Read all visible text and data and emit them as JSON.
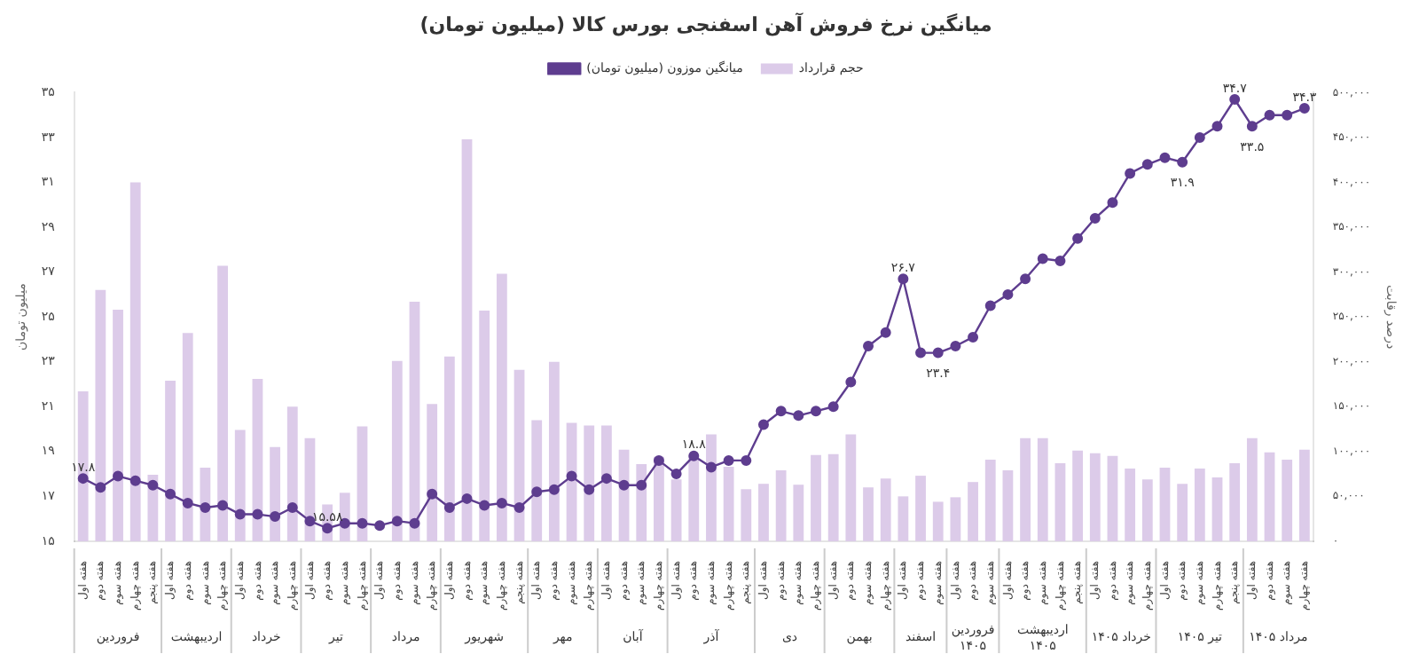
{
  "chart_data": {
    "type": "bar",
    "title": "میانگین نرخ فروش آهن اسفنجی بورس کالا (میلیون تومان)",
    "ylabel": "میلیون تومان",
    "y2label": "درصد رقابت",
    "legend": "top right",
    "grid": false,
    "categories": [
      "هفته اول",
      "هفته دوم",
      "هفته سوم",
      "هفته چهارم",
      "هفته پنجم",
      "هفته اول",
      "هفته دوم",
      "هفته سوم",
      "هفته چهارم",
      "هفته اول",
      "هفته دوم",
      "هفته سوم",
      "هفته چهارم",
      "هفته اول",
      "هفته دوم",
      "هفته سوم",
      "هفته چهارم",
      "هفته اول",
      "هفته دوم",
      "هفته سوم",
      "هفته چهارم",
      "هفته اول",
      "هفته دوم",
      "هفته سوم",
      "هفته چهارم",
      "هفته پنجم",
      "هفته اول",
      "هفته دوم",
      "هفته سوم",
      "هفته چهارم",
      "هفته اول",
      "هفته دوم",
      "هفته سوم",
      "هفته چهارم",
      "هفته اول",
      "هفته دوم",
      "هفته سوم",
      "هفته چهارم",
      "هفته پنجم",
      "هفته اول",
      "هفته دوم",
      "هفته سوم",
      "هفته چهارم",
      "هفته اول",
      "هفته دوم",
      "هفته سوم",
      "هفته چهارم",
      "هفته اول",
      "هفته دوم",
      "هفته سوم",
      "هفته اول",
      "هفته دوم",
      "هفته سوم",
      "هفته اول",
      "هفته دوم",
      "هفته سوم",
      "هفته چهارم",
      "هفته پنجم",
      "هفته اول",
      "هفته دوم",
      "هفته سوم",
      "هفته چهارم",
      "هفته اول",
      "هفته دوم",
      "هفته سوم",
      "هفته چهارم",
      "هفته پنجم",
      "هفته اول",
      "هفته دوم",
      "هفته سوم",
      "هفته چهارم"
    ],
    "annotations": [
      "فروردین",
      "اردیبهشت",
      "خرداد",
      "تیر",
      "مرداد",
      "شهریور",
      "مهر",
      "آبان",
      "آذر",
      "دی",
      "بهمن",
      "اسفند",
      "فروردین ۱۴۰۵",
      "اردیبهشت ۱۴۰۵",
      "خرداد ۱۴۰۵",
      "تیر ۱۴۰۵",
      "مرداد ۱۴۰۵"
    ],
    "ylim": [
      15,
      35
    ],
    "yticks": [
      {
        "value": 15,
        "label": "۱۵"
      },
      {
        "value": 17,
        "label": "۱۷"
      },
      {
        "value": 19,
        "label": "۱۹"
      },
      {
        "value": 21,
        "label": "۲۱"
      },
      {
        "value": 23,
        "label": "۲۳"
      },
      {
        "value": 25,
        "label": "۲۵"
      },
      {
        "value": 27,
        "label": "۲۷"
      },
      {
        "value": 29,
        "label": "۲۹"
      },
      {
        "value": 31,
        "label": "۳۱"
      },
      {
        "value": 33,
        "label": "۳۳"
      },
      {
        "value": 35,
        "label": "۳۵"
      }
    ],
    "y2lim": [
      0,
      500000
    ],
    "y2ticks": [
      {
        "value": 0,
        "label": "۰"
      },
      {
        "value": 50000,
        "label": "۵۰,۰۰۰"
      },
      {
        "value": 100000,
        "label": "۱۰۰,۰۰۰"
      },
      {
        "value": 150000,
        "label": "۱۵۰,۰۰۰"
      },
      {
        "value": 200000,
        "label": "۲۰۰,۰۰۰"
      },
      {
        "value": 250000,
        "label": "۲۵۰,۰۰۰"
      },
      {
        "value": 300000,
        "label": "۳۰۰,۰۰۰"
      },
      {
        "value": 350000,
        "label": "۳۵۰,۰۰۰"
      },
      {
        "value": 400000,
        "label": "۴۰۰,۰۰۰"
      },
      {
        "value": 450000,
        "label": "۴۵۰,۰۰۰"
      },
      {
        "value": 500000,
        "label": "۵۰۰,۰۰۰"
      }
    ],
    "series": [
      {
        "name": "حجم قرارداد",
        "type": "bar",
        "axis": "y2",
        "color": "#dccbe9",
        "values": [
          167000,
          280000,
          258000,
          400000,
          74000,
          179000,
          232000,
          82000,
          307000,
          124000,
          181000,
          105000,
          150000,
          115000,
          41000,
          54000,
          128000,
          0,
          201000,
          267000,
          153000,
          206000,
          448000,
          257000,
          298000,
          191000,
          135000,
          200000,
          132000,
          129000,
          129000,
          102000,
          86000,
          94000,
          69000,
          95000,
          119000,
          83000,
          58000,
          64000,
          79000,
          63000,
          96000,
          97000,
          119000,
          60000,
          70000,
          50000,
          73000,
          44000,
          49000,
          66000,
          91000,
          79000,
          115000,
          115000,
          87000,
          101000,
          98000,
          95000,
          81000,
          69000,
          82000,
          64000,
          81000,
          71000,
          87000,
          115000,
          99000,
          91000,
          102000
        ]
      },
      {
        "name": "میانگین موزون (میلیون تومان)",
        "type": "line",
        "axis": "y",
        "color": "#5e3d8f",
        "marker": "circle",
        "values": [
          17.8,
          17.4,
          17.9,
          17.7,
          17.5,
          17.1,
          16.7,
          16.5,
          16.6,
          16.2,
          16.2,
          16.1,
          16.5,
          15.9,
          15.58,
          15.8,
          15.8,
          15.7,
          15.9,
          15.8,
          17.1,
          16.5,
          16.9,
          16.6,
          16.7,
          16.5,
          17.2,
          17.3,
          17.9,
          17.3,
          17.8,
          17.5,
          17.5,
          18.6,
          18.0,
          18.8,
          18.3,
          18.6,
          18.6,
          20.2,
          20.8,
          20.6,
          20.8,
          21.0,
          22.1,
          23.7,
          24.3,
          26.7,
          23.4,
          23.4,
          23.7,
          24.1,
          25.5,
          26.0,
          26.7,
          27.6,
          27.5,
          28.5,
          29.4,
          30.1,
          31.4,
          31.8,
          32.1,
          31.9,
          33.0,
          33.5,
          34.7,
          33.5,
          34.0,
          34.0,
          34.3
        ],
        "value_labels": [
          "۱۷.۸",
          null,
          null,
          null,
          null,
          null,
          null,
          null,
          null,
          null,
          null,
          null,
          null,
          null,
          "۱۵.۵۸",
          null,
          null,
          null,
          null,
          null,
          null,
          null,
          null,
          null,
          null,
          null,
          null,
          null,
          null,
          null,
          null,
          null,
          null,
          null,
          null,
          "۱۸.۸",
          null,
          null,
          null,
          null,
          null,
          null,
          null,
          null,
          null,
          null,
          null,
          "۲۶.۷",
          null,
          "۲۳.۴",
          null,
          null,
          null,
          null,
          null,
          null,
          null,
          null,
          null,
          null,
          null,
          null,
          null,
          "۳۱.۹",
          null,
          null,
          "۳۴.۷",
          "۳۳.۵",
          null,
          null,
          "۳۴.۳"
        ]
      }
    ]
  }
}
